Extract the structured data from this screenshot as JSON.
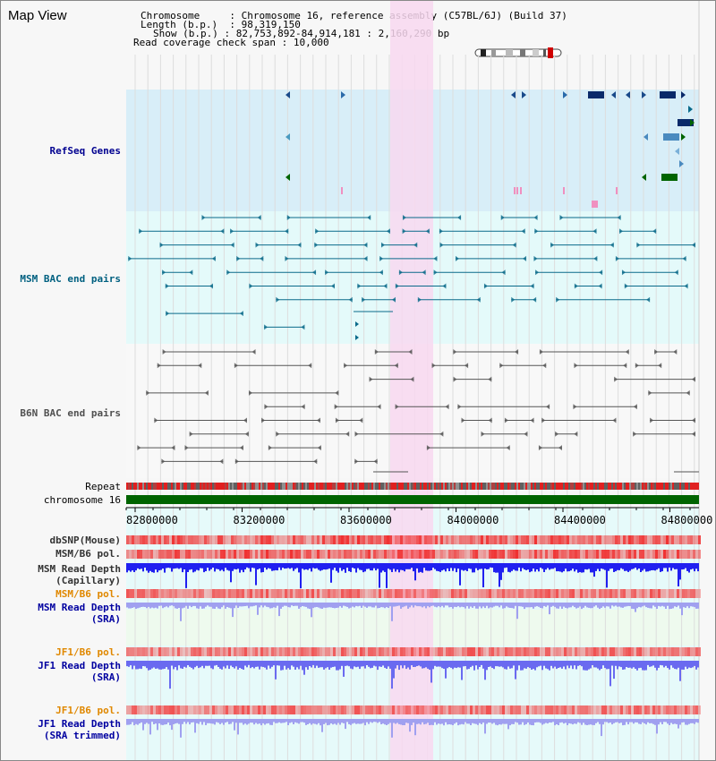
{
  "app": {
    "title": "Map View"
  },
  "header": {
    "chromosome_label": "Chromosome",
    "chromosome_value": "Chromosome 16, reference assembly (C57BL/6J) (Build 37)",
    "length_label": "Length (b.p.)",
    "length_value": "98,319,150",
    "show_label": "Show (b.p.)",
    "show_value": "82,753,892-84,914,181 : 2,160,290 bp",
    "coverage_label": "Read coverage check span",
    "coverage_value": "10,000"
  },
  "tracks": {
    "refseq": "RefSeq Genes",
    "msm_bac": "MSM BAC end pairs",
    "b6n_bac": "B6N BAC end pairs",
    "repeat": "Repeat",
    "chromosome": "chromosome 16",
    "dbsnp": "dbSNP(Mouse)",
    "msm_b6_pol_1": "MSM/B6 pol.",
    "msm_depth_cap": "MSM Read Depth\n(Capillary)",
    "msm_b6_pol_2": "MSM/B6 pol.",
    "msm_depth_sra": "MSM Read Depth\n(SRA)",
    "jf1_b6_pol_1": "JF1/B6 pol.",
    "jf1_depth_sra": "JF1 Read Depth\n(SRA)",
    "jf1_b6_pol_2": "JF1/B6 pol.",
    "jf1_depth_trim": "JF1 Read Depth\n(SRA trimmed)"
  },
  "axis": {
    "ticks": [
      "82800000",
      "83200000",
      "83600000",
      "84000000",
      "84400000",
      "84800000"
    ]
  },
  "colors": {
    "refseq_bg": "#d8eef8",
    "msm_bg": "#e4fafa",
    "highlight": "#f8d8f0",
    "chrom_bar": "#006400",
    "msm_label": "#006080",
    "b6n_label": "#505050",
    "refseq_label": "#000090",
    "gray_label": "#333333",
    "orange_label": "#e08800",
    "blue_label": "#0000a0",
    "depth_cap": "#2020f0",
    "depth_sra": "#a0a0f0",
    "depth_jf1": "#6a6af0"
  }
}
